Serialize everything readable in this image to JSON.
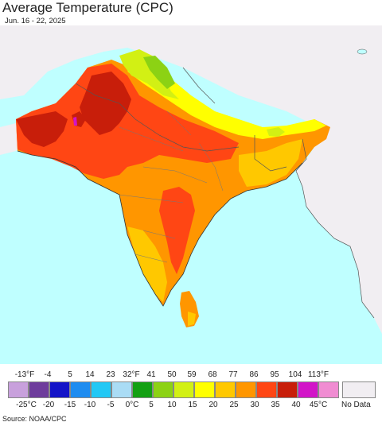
{
  "title": "Average Temperature (CPC)",
  "date_range": "Jun. 16 - 22, 2025",
  "source": "Source: NOAA/CPC",
  "legend": {
    "fahrenheit_labels": [
      "-13°F",
      "-4",
      "5",
      "14",
      "23",
      "32°F",
      "41",
      "50",
      "59",
      "68",
      "77",
      "86",
      "95",
      "104",
      "113°F"
    ],
    "celsius_labels": [
      "-25°C",
      "-20",
      "-15",
      "-10",
      "-5",
      "0°C",
      "5",
      "10",
      "15",
      "20",
      "25",
      "30",
      "35",
      "40",
      "45°C"
    ],
    "colors": [
      "#c8a0dc",
      "#6e3c9c",
      "#1414c8",
      "#1e8cf0",
      "#22c8f5",
      "#aadcf5",
      "#13a013",
      "#8cd214",
      "#d2f014",
      "#ffff00",
      "#ffc800",
      "#ff9600",
      "#ff4614",
      "#c81e0a",
      "#d214c8",
      "#f08cd2"
    ],
    "no_data_label": "No Data",
    "no_data_color": "#f1eef2"
  },
  "map": {
    "ocean_color": "#bfffff",
    "land_nodata_color": "#f1eef2",
    "border_color": "#555555"
  }
}
